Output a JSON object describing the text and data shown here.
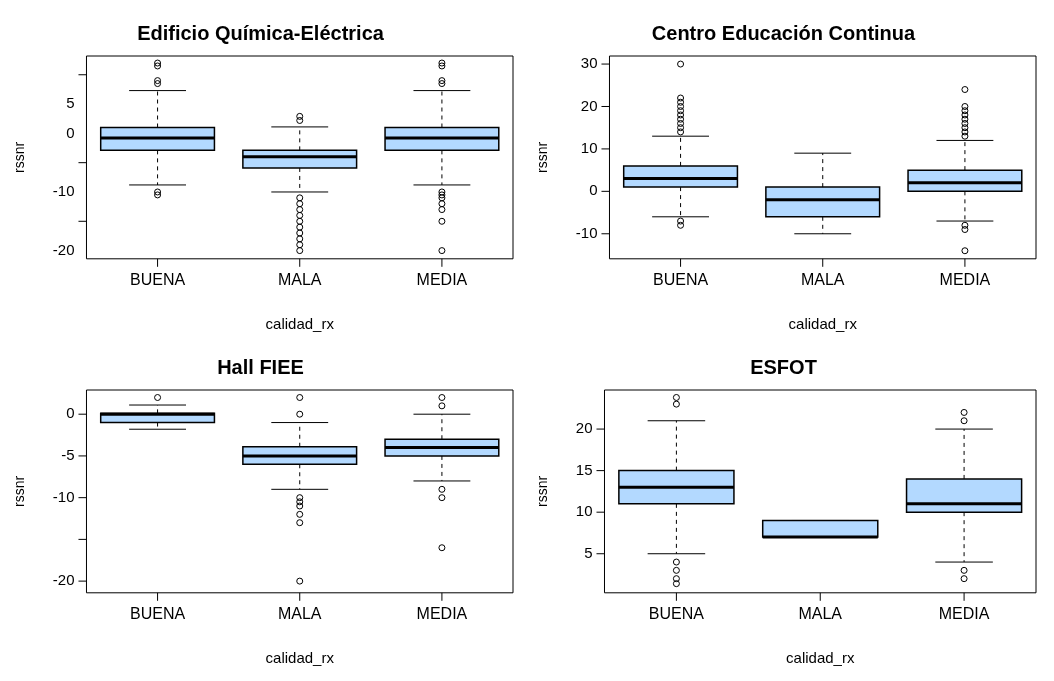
{
  "chart_data": [
    {
      "type": "box",
      "title": "Edificio Química-Eléctrica",
      "xlabel": "calidad_rx",
      "ylabel": "rssnr",
      "categories": [
        "BUENA",
        "MALA",
        "MEDIA"
      ],
      "color": "#b3d9ff",
      "ylim": [
        -21.4,
        13.2
      ],
      "yticks": [
        {
          "value": 10,
          "label": null
        },
        5,
        0,
        {
          "value": -5,
          "label": null
        },
        -10,
        {
          "value": -15,
          "label": null
        },
        -20
      ],
      "grid": false,
      "boxes": [
        {
          "low": -8.8,
          "q1": -2.9,
          "median": -0.8,
          "q3": 1,
          "high": 7.3,
          "outliers": [
            12,
            11.5,
            9,
            8.5,
            -10,
            -10.5
          ]
        },
        {
          "low": -10,
          "q1": -5.9,
          "median": -4,
          "q3": -2.9,
          "high": 1.1,
          "outliers": [
            2.9,
            2.2,
            -11,
            -12,
            -13,
            -14,
            -15,
            -16,
            -17,
            -18,
            -19,
            -20
          ]
        },
        {
          "low": -8.8,
          "q1": -2.9,
          "median": -0.8,
          "q3": 1,
          "high": 7.3,
          "outliers": [
            12,
            11.5,
            9,
            8.5,
            -10,
            -10.5,
            -11,
            -12,
            -13,
            -15,
            -20
          ]
        }
      ]
    },
    {
      "type": "box",
      "title": "Centro Educación Continua",
      "xlabel": "calidad_rx",
      "ylabel": "rssnr",
      "categories": [
        "BUENA",
        "MALA",
        "MEDIA"
      ],
      "color": "#b3d9ff",
      "ylim": [
        -15.9,
        31.9
      ],
      "yticks": [
        30,
        20,
        10,
        0,
        -10
      ],
      "grid": false,
      "boxes": [
        {
          "low": -6,
          "q1": 1,
          "median": 3,
          "q3": 6,
          "high": 13,
          "outliers": [
            14,
            15,
            16,
            17,
            18,
            19,
            20,
            21,
            22,
            30,
            -7,
            -8
          ]
        },
        {
          "low": -10,
          "q1": -6,
          "median": -2,
          "q3": 1,
          "high": 9
        },
        {
          "low": -7,
          "q1": 0,
          "median": 2,
          "q3": 5,
          "high": 12,
          "outliers": [
            13,
            14,
            15,
            16,
            17,
            18,
            19,
            20,
            24,
            -8,
            -9,
            -14
          ]
        }
      ]
    },
    {
      "type": "box",
      "title": "Hall FIEE",
      "xlabel": "calidad_rx",
      "ylabel": "rssnr",
      "categories": [
        "BUENA",
        "MALA",
        "MEDIA"
      ],
      "color": "#b3d9ff",
      "ylim": [
        -21.4,
        2.9
      ],
      "yticks": [
        0,
        -5,
        -10,
        {
          "value": -15,
          "label": null
        },
        -20
      ],
      "grid": false,
      "boxes": [
        {
          "low": -1.8,
          "q1": -1,
          "median": 0,
          "q3": 0.1,
          "high": 1.1,
          "outliers": [
            2
          ]
        },
        {
          "low": -9,
          "q1": -6,
          "median": -5,
          "q3": -3.9,
          "high": -1,
          "outliers": [
            2,
            0,
            -10,
            -10.5,
            -11,
            -12,
            -13,
            -20
          ]
        },
        {
          "low": -8,
          "q1": -5,
          "median": -4,
          "q3": -3,
          "high": 0,
          "outliers": [
            2,
            1,
            -9,
            -10,
            -16
          ]
        }
      ]
    },
    {
      "type": "box",
      "title": "ESFOT",
      "xlabel": "calidad_rx",
      "ylabel": "rssnr",
      "categories": [
        "BUENA",
        "MALA",
        "MEDIA"
      ],
      "color": "#b3d9ff",
      "ylim": [
        0.3,
        24.7
      ],
      "yticks": [
        20,
        15,
        10,
        5
      ],
      "grid": false,
      "boxes": [
        {
          "low": 5,
          "q1": 11,
          "median": 13,
          "q3": 15,
          "high": 21,
          "outliers": [
            23.8,
            23,
            4,
            3,
            2,
            1.4
          ]
        },
        {
          "low": 7,
          "q1": 7,
          "median": 7,
          "q3": 9,
          "high": 9
        },
        {
          "low": 4,
          "q1": 10,
          "median": 11,
          "q3": 14,
          "high": 20,
          "outliers": [
            22,
            21,
            3,
            2
          ]
        }
      ]
    }
  ]
}
